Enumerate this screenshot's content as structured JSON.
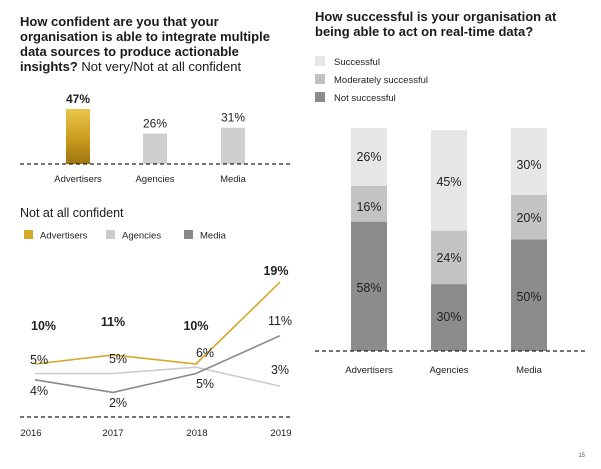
{
  "page_number": "15",
  "chart_data": [
    {
      "type": "bar",
      "title": "How confident are you that your organisation is able to integrate multiple data sources to produce actionable insights?",
      "subtitle": "Not very/Not at all confident",
      "categories": [
        "Advertisers",
        "Agencies",
        "Media"
      ],
      "values": [
        47,
        26,
        31
      ],
      "value_labels": [
        "47%",
        "26%",
        "31%"
      ],
      "colors": [
        "#c9a227",
        "#cfcfcf",
        "#cfcfcf"
      ]
    },
    {
      "type": "line",
      "title": "Not at all confident",
      "x": [
        "2016",
        "2017",
        "2018",
        "2019"
      ],
      "legend": [
        "Advertisers",
        "Agencies",
        "Media"
      ],
      "series": [
        {
          "name": "Advertisers",
          "values": [
            10,
            11,
            10,
            19
          ],
          "labels": [
            "10%",
            "11%",
            "10%",
            "19%"
          ],
          "color": "#d4a82a"
        },
        {
          "name": "Agencies",
          "values": [
            5,
            5,
            6,
            3
          ],
          "labels": [
            "5%",
            "5%",
            "6%",
            "3%"
          ],
          "color": "#cccccc"
        },
        {
          "name": "Media",
          "values": [
            4,
            2,
            5,
            11
          ],
          "labels": [
            "4%",
            "2%",
            "5%",
            "11%"
          ],
          "color": "#8a8a8a"
        }
      ]
    },
    {
      "type": "bar",
      "stacked": true,
      "title": "How successful is your organisation at being able to act on real-time data?",
      "categories": [
        "Advertisers",
        "Agencies",
        "Media"
      ],
      "legend": [
        "Successful",
        "Moderately successful",
        "Not successful"
      ],
      "series": [
        {
          "name": "Not successful",
          "values": [
            58,
            30,
            50
          ],
          "labels": [
            "58%",
            "30%",
            "50%"
          ],
          "color": "#8c8c8c"
        },
        {
          "name": "Moderately successful",
          "values": [
            16,
            24,
            20
          ],
          "labels": [
            "16%",
            "24%",
            "20%"
          ],
          "color": "#c3c3c3"
        },
        {
          "name": "Successful",
          "values": [
            26,
            45,
            30
          ],
          "labels": [
            "26%",
            "45%",
            "30%"
          ],
          "color": "#e6e6e6"
        }
      ]
    }
  ]
}
